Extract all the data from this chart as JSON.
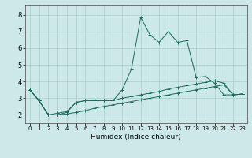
{
  "xlabel": "Humidex (Indice chaleur)",
  "background_color": "#cce8e8",
  "grid_color": "#aacccc",
  "line_color": "#1a6b5a",
  "xlim": [
    -0.5,
    23.5
  ],
  "ylim": [
    1.5,
    8.6
  ],
  "xticks": [
    0,
    1,
    2,
    3,
    4,
    5,
    6,
    7,
    8,
    9,
    10,
    11,
    12,
    13,
    14,
    15,
    16,
    17,
    18,
    19,
    20,
    21,
    22,
    23
  ],
  "yticks": [
    2,
    3,
    4,
    5,
    6,
    7,
    8
  ],
  "series1_x": [
    0,
    1,
    2,
    3,
    4,
    5,
    6,
    7,
    8,
    9,
    10,
    11,
    12,
    13,
    14,
    15,
    16,
    17,
    18,
    19,
    20,
    21,
    22,
    23
  ],
  "series1_y": [
    3.5,
    2.85,
    2.0,
    2.0,
    2.15,
    2.75,
    2.85,
    2.85,
    2.85,
    2.85,
    3.5,
    4.75,
    7.85,
    6.8,
    6.35,
    7.0,
    6.35,
    6.45,
    4.25,
    4.3,
    3.9,
    3.2,
    3.2,
    3.25
  ],
  "series2_x": [
    0,
    1,
    2,
    3,
    4,
    5,
    6,
    7,
    8,
    9,
    10,
    11,
    12,
    13,
    14,
    15,
    16,
    17,
    18,
    19,
    20,
    21,
    22,
    23
  ],
  "series2_y": [
    3.5,
    2.85,
    2.0,
    2.1,
    2.2,
    2.75,
    2.85,
    2.9,
    2.85,
    2.85,
    3.0,
    3.1,
    3.2,
    3.3,
    3.4,
    3.55,
    3.65,
    3.75,
    3.85,
    3.95,
    4.05,
    3.9,
    3.2,
    3.25
  ],
  "series3_x": [
    0,
    1,
    2,
    3,
    4,
    5,
    6,
    7,
    8,
    9,
    10,
    11,
    12,
    13,
    14,
    15,
    16,
    17,
    18,
    19,
    20,
    21,
    22,
    23
  ],
  "series3_y": [
    3.5,
    2.85,
    2.0,
    2.0,
    2.05,
    2.15,
    2.25,
    2.4,
    2.5,
    2.6,
    2.7,
    2.8,
    2.9,
    3.0,
    3.1,
    3.2,
    3.3,
    3.4,
    3.5,
    3.6,
    3.7,
    3.8,
    3.2,
    3.25
  ],
  "xlabel_fontsize": 6.5,
  "tick_fontsize_x": 5.0,
  "tick_fontsize_y": 6.0
}
